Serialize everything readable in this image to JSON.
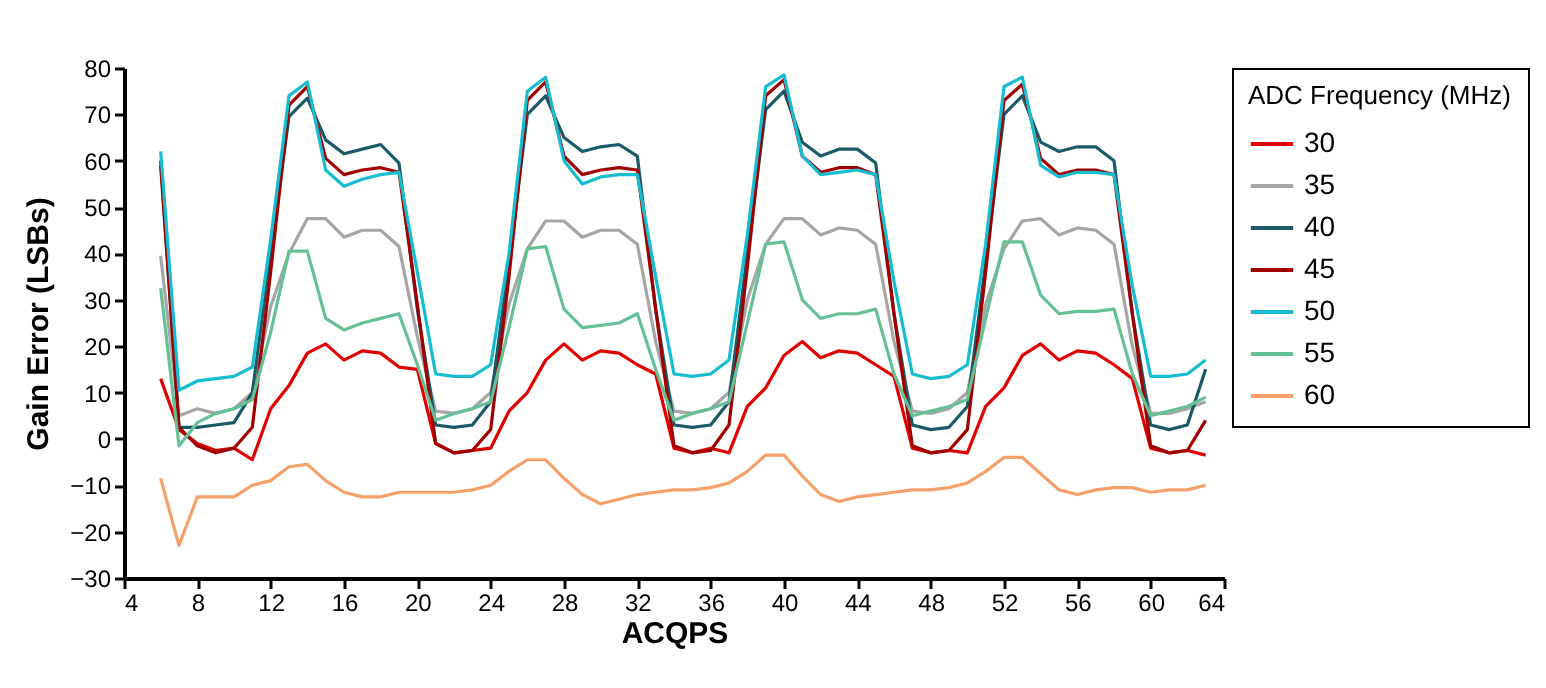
{
  "chart_data": {
    "type": "line",
    "xlabel": "ACQPS",
    "ylabel": "Gain Error (LSBs)",
    "legend_title": "ADC Frequency (MHz)",
    "legend": "right",
    "grid": false,
    "xlim": [
      4,
      64
    ],
    "xticks": [
      4,
      8,
      12,
      16,
      20,
      24,
      28,
      32,
      36,
      40,
      44,
      48,
      52,
      56,
      60,
      64
    ],
    "ylim": [
      -30,
      80
    ],
    "yticks": [
      -30,
      -20,
      -10,
      0,
      10,
      20,
      30,
      40,
      50,
      60,
      70,
      80
    ],
    "x": [
      6,
      7,
      8,
      9,
      10,
      11,
      12,
      13,
      14,
      15,
      16,
      17,
      18,
      19,
      20,
      21,
      22,
      23,
      24,
      25,
      26,
      27,
      28,
      29,
      30,
      31,
      32,
      33,
      34,
      35,
      36,
      37,
      38,
      39,
      40,
      41,
      42,
      43,
      44,
      45,
      46,
      47,
      48,
      49,
      50,
      51,
      52,
      53,
      54,
      55,
      56,
      57,
      58,
      59,
      60,
      61,
      62,
      63
    ],
    "series": [
      {
        "name": "30",
        "color": "#e00000",
        "values": [
          13,
          2,
          -1,
          -2.5,
          -2,
          -4.5,
          6.5,
          11.5,
          18.5,
          20.5,
          17,
          19,
          18.5,
          15.5,
          15,
          -1,
          -3,
          -2.5,
          -2,
          6,
          10,
          17,
          20.5,
          17,
          19,
          18.5,
          16,
          14,
          -2,
          -3,
          -2,
          -3,
          7,
          11,
          18,
          21,
          17.5,
          19,
          18.5,
          16,
          13.5,
          -2,
          -3,
          -2.5,
          -3,
          7,
          11,
          18,
          20.5,
          17,
          19,
          18.5,
          16,
          13,
          -2,
          -3,
          -2.5,
          -3.5
        ]
      },
      {
        "name": "35",
        "color": "#a6a6a6",
        "values": [
          39.5,
          5,
          6.5,
          5.5,
          6.5,
          10,
          28.5,
          40,
          47.5,
          47.5,
          43.5,
          45,
          45,
          41.5,
          22,
          6,
          5.5,
          6.5,
          10,
          29,
          41,
          47,
          47,
          43.5,
          45,
          45,
          42,
          21,
          6,
          5.5,
          6.5,
          10,
          30,
          42,
          47.5,
          47.5,
          44,
          45.5,
          45,
          42,
          21,
          6,
          5.5,
          6.5,
          10,
          29,
          41,
          47,
          47.5,
          44,
          45.5,
          45,
          42,
          20,
          5.5,
          5.5,
          6.5,
          8
        ]
      },
      {
        "name": "40",
        "color": "#1a5a66",
        "values": [
          60,
          2.5,
          2.5,
          3,
          3.5,
          10,
          40,
          69.5,
          73.5,
          64.5,
          61.5,
          62.5,
          63.5,
          59.5,
          28,
          3,
          2.5,
          3,
          8,
          38,
          70,
          74,
          65,
          62,
          63,
          63.5,
          61,
          28,
          3,
          2.5,
          3,
          8,
          40,
          71,
          75,
          64,
          61,
          62.5,
          62.5,
          59.5,
          27,
          3,
          2,
          2.5,
          7,
          38,
          70,
          74,
          64,
          62,
          63,
          63,
          60,
          27,
          3,
          2,
          3,
          15
        ]
      },
      {
        "name": "45",
        "color": "#a00000",
        "values": [
          59,
          2.5,
          -1.5,
          -3,
          -2,
          2.5,
          36,
          72,
          76,
          60.5,
          57,
          58,
          58.5,
          57.5,
          29,
          -1,
          -3,
          -2.5,
          2,
          35,
          73,
          77,
          61,
          57,
          58,
          58.5,
          58,
          28,
          -1.5,
          -3,
          -2.5,
          3,
          37,
          74,
          77.5,
          61,
          57.5,
          58.5,
          58.5,
          57,
          27,
          -1.5,
          -3,
          -2.5,
          2,
          36,
          73,
          76.5,
          60.5,
          57,
          58,
          58,
          57,
          27,
          -1.5,
          -3,
          -2.5,
          4
        ]
      },
      {
        "name": "50",
        "color": "#17bccf",
        "values": [
          62,
          10.5,
          12.5,
          13,
          13.5,
          15.5,
          43,
          74,
          77,
          58,
          54.5,
          56,
          57,
          57.5,
          36,
          14,
          13.5,
          13.5,
          16,
          40,
          75,
          78,
          60,
          55,
          56.5,
          57,
          57,
          35,
          14,
          13.5,
          14,
          17,
          44,
          76,
          78.5,
          61,
          57,
          57.5,
          58,
          57,
          34,
          14,
          13,
          13.5,
          16,
          42,
          76,
          78,
          59,
          56.5,
          57.5,
          57.5,
          57,
          33,
          13.5,
          13.5,
          14,
          17
        ]
      },
      {
        "name": "55",
        "color": "#66c095",
        "values": [
          32.5,
          -1.5,
          3.5,
          5.5,
          6.5,
          8.5,
          23,
          40.5,
          40.5,
          26,
          23.5,
          25,
          26,
          27,
          16,
          4,
          5.5,
          6.5,
          8,
          24,
          41,
          41.5,
          28,
          24,
          24.5,
          25,
          27,
          15,
          4,
          5.5,
          6.5,
          8,
          25,
          42,
          42.5,
          30,
          26,
          27,
          27,
          28,
          14,
          5,
          6,
          7,
          8.5,
          26,
          42.5,
          42.5,
          31,
          27,
          27.5,
          27.5,
          28,
          14,
          5,
          6,
          7,
          9
        ]
      },
      {
        "name": "60",
        "color": "#f4a06a",
        "values": [
          -8.5,
          -23,
          -12.5,
          -12.5,
          -12.5,
          -10,
          -9,
          -6,
          -5.5,
          -9,
          -11.5,
          -12.5,
          -12.5,
          -11.5,
          -11.5,
          -11.5,
          -11.5,
          -11,
          -10,
          -7,
          -4.5,
          -4.5,
          -8.5,
          -12,
          -14,
          -13,
          -12,
          -11.5,
          -11,
          -11,
          -10.5,
          -9.5,
          -7,
          -3.5,
          -3.5,
          -8,
          -12,
          -13.5,
          -12.5,
          -12,
          -11.5,
          -11,
          -11,
          -10.5,
          -9.5,
          -7,
          -4,
          -4,
          -7.5,
          -11,
          -12,
          -11,
          -10.5,
          -10.5,
          -11.5,
          -11,
          -11,
          -10
        ]
      }
    ]
  }
}
